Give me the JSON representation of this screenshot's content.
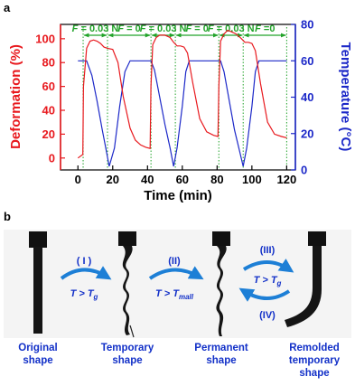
{
  "panel_a_label": "a",
  "panel_b_label": "b",
  "chart_data": {
    "type": "line",
    "xlabel": "Time (min)",
    "ylabel_left": "Deformation (%)",
    "ylabel_right": "Temperature (°C)",
    "xlim": [
      -10,
      125
    ],
    "ylim_left": [
      -10,
      112
    ],
    "ylim_right": [
      0,
      80
    ],
    "xticks": [
      "0",
      "20",
      "40",
      "60",
      "80",
      "100",
      "120"
    ],
    "yticks_left": [
      "0",
      "20",
      "40",
      "60",
      "80",
      "100"
    ],
    "yticks_right": [
      "0",
      "20",
      "40",
      "60",
      "80"
    ],
    "grid": false,
    "colors": {
      "deformation": "#e8191e",
      "temperature": "#1c28c8",
      "annotation": "#22a32a",
      "axis": "#000000"
    },
    "series": [
      {
        "axis": "left",
        "x": [
          0,
          2.8,
          3.2,
          5,
          7,
          9,
          11,
          13,
          15,
          17,
          20,
          23,
          26,
          30,
          33,
          36,
          39,
          41.5,
          42,
          43,
          45,
          47,
          50,
          53,
          55,
          57,
          59,
          61,
          63,
          66,
          70,
          74,
          78,
          80.5,
          81,
          82,
          84,
          86,
          88,
          91,
          94,
          96,
          98,
          100,
          102,
          105,
          109,
          113,
          117,
          120
        ],
        "y": [
          0,
          3,
          60,
          92,
          98,
          99,
          98,
          96,
          93,
          92,
          91,
          80,
          52,
          25,
          15,
          11,
          9,
          8,
          60,
          95,
          101,
          103,
          103,
          101,
          97,
          94,
          94,
          93,
          88,
          63,
          33,
          22,
          19,
          18,
          60,
          98,
          104,
          107,
          106,
          104,
          100,
          97,
          97,
          96,
          90,
          62,
          30,
          20,
          18,
          17
        ]
      },
      {
        "axis": "right",
        "x": [
          0,
          3,
          5,
          8,
          11,
          14,
          16,
          18,
          21,
          24,
          27,
          30,
          35,
          40,
          42,
          44,
          47,
          50,
          53,
          55,
          57,
          60,
          62,
          64,
          66,
          70,
          75,
          80,
          82,
          84,
          87,
          90,
          93,
          95,
          97,
          100,
          102,
          104,
          106,
          110,
          115,
          120
        ],
        "y": [
          60,
          60,
          60,
          52,
          38,
          22,
          12,
          2,
          12,
          35,
          54,
          60,
          60,
          60,
          60,
          55,
          40,
          25,
          12,
          2,
          12,
          35,
          54,
          60,
          60,
          60,
          60,
          60,
          60,
          54,
          38,
          22,
          10,
          2,
          12,
          35,
          54,
          60,
          60,
          60,
          60,
          60
        ]
      }
    ],
    "force_bands": [
      {
        "x_start": 3,
        "x_end": 17,
        "label": "F",
        "value": " = 0.03 N"
      },
      {
        "x_start": 17,
        "x_end": 42,
        "label": "F",
        "value": " = 0"
      },
      {
        "x_start": 42,
        "x_end": 56,
        "label": "F",
        "value": " = 0.03 N"
      },
      {
        "x_start": 56,
        "x_end": 81,
        "label": "F",
        "value": " = 0"
      },
      {
        "x_start": 81,
        "x_end": 95,
        "label": "F",
        "value": " = 0.03 N"
      },
      {
        "x_start": 95,
        "x_end": 120,
        "label": "F",
        "value": " =0"
      }
    ]
  },
  "panel_b": {
    "stage_1": {
      "roman": "( I )",
      "cond_prefix": "T > T",
      "cond_sub": "g"
    },
    "stage_2": {
      "roman": "(II)",
      "cond_prefix": "T > T",
      "cond_sub": "mall"
    },
    "stage_3": {
      "roman": "(III)",
      "cond_prefix": "T > T",
      "cond_sub": "g",
      "roman_back": "(IV)"
    },
    "captions": [
      {
        "line1": "Original",
        "line2": "shape",
        "line3": ""
      },
      {
        "line1": "Temporary",
        "line2": "shape",
        "line3": ""
      },
      {
        "line1": "Permanent",
        "line2": "shape",
        "line3": ""
      },
      {
        "line1": "Remolded",
        "line2": "temporary",
        "line3": "shape"
      }
    ]
  }
}
